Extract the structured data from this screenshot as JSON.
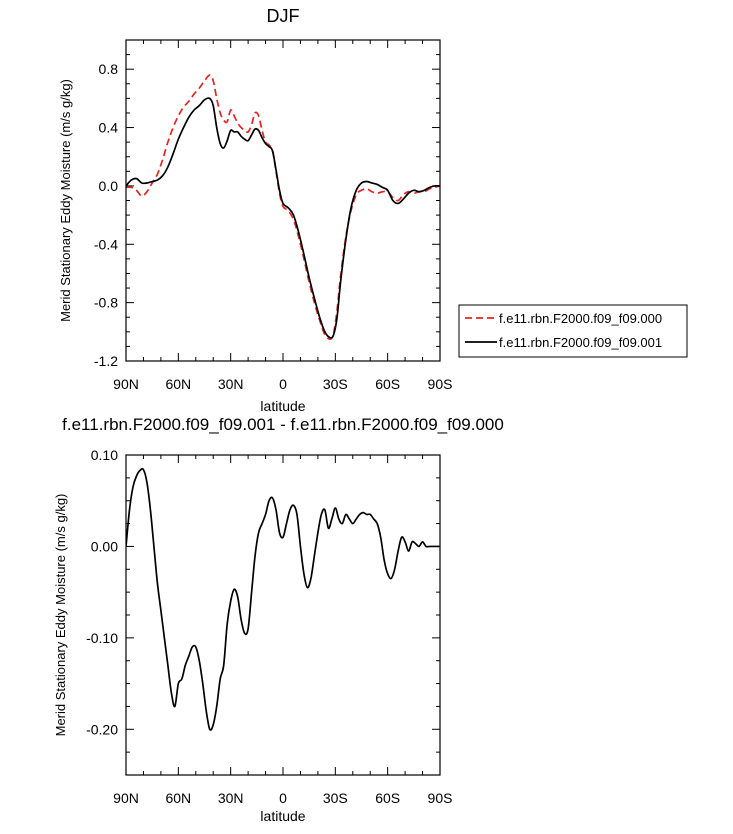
{
  "chart_data": [
    {
      "type": "line",
      "title": "DJF",
      "xlabel": "latitude",
      "ylabel": "Merid Stationary Eddy Moisture (m/s g/kg)",
      "xlim": [
        90,
        -90
      ],
      "ylim": [
        -1.2,
        1.0
      ],
      "xticks": [
        90,
        60,
        30,
        0,
        -30,
        -60,
        -90
      ],
      "xtick_labels": [
        "90N",
        "60N",
        "30N",
        "0",
        "30S",
        "60S",
        "90S"
      ],
      "yticks": [
        -1.2,
        -0.8,
        -0.4,
        0.0,
        0.4,
        0.8
      ],
      "ytick_labels": [
        "-1.2",
        "-0.8",
        "-0.4",
        "0.0",
        "0.4",
        "0.8"
      ],
      "grid": false,
      "legend_position": "right, outside, lower",
      "series": [
        {
          "name": "f.e11.rbn.F2000.f09_f09.000",
          "color": "#e8231f",
          "dash": "dashed",
          "x": [
            90,
            87,
            84,
            81,
            78,
            75,
            72,
            69,
            66,
            63,
            60,
            57,
            54,
            51,
            48,
            45,
            42,
            40,
            38,
            36,
            34,
            32,
            30,
            28,
            26,
            24,
            22,
            20,
            18,
            16,
            14,
            12,
            10,
            8,
            6,
            4,
            2,
            0,
            -3,
            -6,
            -9,
            -12,
            -15,
            -18,
            -21,
            -24,
            -27,
            -29,
            -31,
            -33,
            -36,
            -39,
            -42,
            -45,
            -48,
            -51,
            -54,
            -57,
            -60,
            -63,
            -66,
            -69,
            -72,
            -75,
            -78,
            -81,
            -84,
            -87,
            -90
          ],
          "y": [
            -0.01,
            -0.01,
            -0.03,
            -0.07,
            -0.04,
            0.02,
            0.08,
            0.18,
            0.3,
            0.4,
            0.48,
            0.54,
            0.58,
            0.63,
            0.67,
            0.72,
            0.76,
            0.72,
            0.6,
            0.5,
            0.45,
            0.44,
            0.52,
            0.48,
            0.43,
            0.4,
            0.38,
            0.37,
            0.42,
            0.5,
            0.48,
            0.38,
            0.3,
            0.28,
            0.24,
            0.1,
            -0.05,
            -0.14,
            -0.17,
            -0.23,
            -0.35,
            -0.5,
            -0.66,
            -0.8,
            -0.92,
            -1.02,
            -1.05,
            -1.01,
            -0.85,
            -0.62,
            -0.35,
            -0.17,
            -0.06,
            -0.03,
            -0.02,
            -0.04,
            -0.05,
            -0.04,
            -0.04,
            -0.08,
            -0.1,
            -0.06,
            -0.04,
            -0.05,
            -0.04,
            -0.04,
            -0.02,
            -0.01,
            0.0
          ]
        },
        {
          "name": "f.e11.rbn.F2000.f09_f09.001",
          "color": "#000000",
          "dash": "solid",
          "x": [
            90,
            87,
            84,
            81,
            78,
            75,
            72,
            69,
            66,
            63,
            60,
            57,
            54,
            51,
            48,
            45,
            42,
            40,
            38,
            36,
            34,
            32,
            30,
            28,
            26,
            24,
            22,
            20,
            18,
            16,
            14,
            12,
            10,
            8,
            6,
            4,
            2,
            0,
            -3,
            -6,
            -9,
            -12,
            -15,
            -18,
            -21,
            -24,
            -27,
            -29,
            -31,
            -33,
            -36,
            -39,
            -42,
            -45,
            -48,
            -51,
            -54,
            -57,
            -60,
            -63,
            -66,
            -69,
            -72,
            -75,
            -78,
            -81,
            -84,
            -87,
            -90
          ],
          "y": [
            0.0,
            0.04,
            0.05,
            0.02,
            0.02,
            0.03,
            0.04,
            0.07,
            0.13,
            0.22,
            0.32,
            0.4,
            0.47,
            0.52,
            0.55,
            0.59,
            0.6,
            0.55,
            0.4,
            0.29,
            0.26,
            0.31,
            0.38,
            0.37,
            0.37,
            0.34,
            0.32,
            0.31,
            0.35,
            0.39,
            0.38,
            0.33,
            0.29,
            0.27,
            0.24,
            0.11,
            -0.03,
            -0.12,
            -0.15,
            -0.2,
            -0.32,
            -0.47,
            -0.63,
            -0.77,
            -0.9,
            -1.0,
            -1.04,
            -1.02,
            -0.9,
            -0.66,
            -0.37,
            -0.15,
            -0.03,
            0.02,
            0.03,
            0.02,
            0.01,
            -0.01,
            -0.03,
            -0.1,
            -0.12,
            -0.09,
            -0.05,
            -0.03,
            -0.04,
            -0.03,
            -0.01,
            0.0,
            0.0
          ]
        }
      ]
    },
    {
      "type": "line",
      "title": "f.e11.rbn.F2000.f09_f09.001 - f.e11.rbn.F2000.f09_f09.000",
      "xlabel": "latitude",
      "ylabel": "Merid Stationary Eddy Moisture (m/s g/kg)",
      "xlim": [
        90,
        -90
      ],
      "ylim": [
        -0.25,
        0.1
      ],
      "xticks": [
        90,
        60,
        30,
        0,
        -30,
        -60,
        -90
      ],
      "xtick_labels": [
        "90N",
        "60N",
        "30N",
        "0",
        "30S",
        "60S",
        "90S"
      ],
      "yticks": [
        -0.2,
        -0.1,
        0.0,
        0.1
      ],
      "ytick_labels": [
        "-0.20",
        "-0.10",
        "0.00",
        "0.10"
      ],
      "grid": false,
      "series": [
        {
          "color": "#000000",
          "dash": "solid",
          "x": [
            90,
            88,
            86,
            84,
            82,
            80,
            78,
            76,
            74,
            72,
            70,
            68,
            66,
            64,
            62,
            60,
            58,
            56,
            54,
            52,
            50,
            48,
            46,
            44,
            42,
            40,
            38,
            36,
            34,
            32,
            30,
            28,
            26,
            24,
            22,
            20,
            18,
            16,
            14,
            12,
            10,
            8,
            6,
            4,
            2,
            0,
            -2,
            -4,
            -6,
            -8,
            -10,
            -12,
            -14,
            -16,
            -18,
            -20,
            -22,
            -24,
            -26,
            -28,
            -30,
            -32,
            -34,
            -36,
            -38,
            -40,
            -42,
            -44,
            -46,
            -48,
            -50,
            -52,
            -54,
            -56,
            -58,
            -60,
            -62,
            -64,
            -66,
            -68,
            -70,
            -72,
            -74,
            -76,
            -78,
            -80,
            -82,
            -84,
            -86,
            -88,
            -90
          ],
          "y": [
            0.0,
            0.04,
            0.065,
            0.077,
            0.083,
            0.084,
            0.07,
            0.04,
            0.0,
            -0.04,
            -0.07,
            -0.1,
            -0.13,
            -0.16,
            -0.175,
            -0.15,
            -0.145,
            -0.13,
            -0.12,
            -0.11,
            -0.11,
            -0.125,
            -0.15,
            -0.18,
            -0.2,
            -0.195,
            -0.175,
            -0.145,
            -0.13,
            -0.085,
            -0.06,
            -0.047,
            -0.055,
            -0.08,
            -0.095,
            -0.09,
            -0.05,
            -0.01,
            0.015,
            0.025,
            0.035,
            0.05,
            0.053,
            0.04,
            0.015,
            0.01,
            0.025,
            0.04,
            0.045,
            0.035,
            0.0,
            -0.03,
            -0.045,
            -0.035,
            -0.01,
            0.015,
            0.035,
            0.04,
            0.02,
            0.03,
            0.042,
            0.03,
            0.025,
            0.035,
            0.03,
            0.025,
            0.03,
            0.035,
            0.037,
            0.035,
            0.035,
            0.03,
            0.025,
            0.01,
            -0.015,
            -0.03,
            -0.035,
            -0.025,
            -0.005,
            0.01,
            0.005,
            -0.005,
            0.005,
            0.003,
            0.0,
            0.005,
            0.0,
            0.0,
            0.0,
            0.0,
            0.0
          ]
        }
      ]
    }
  ]
}
